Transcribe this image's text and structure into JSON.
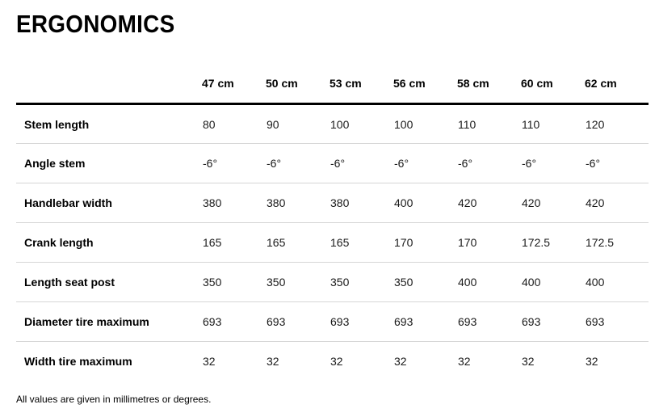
{
  "title": "ERGONOMICS",
  "table": {
    "size_headers": [
      "47 cm",
      "50 cm",
      "53 cm",
      "56 cm",
      "58 cm",
      "60 cm",
      "62 cm"
    ],
    "rows": [
      {
        "label": "Stem length",
        "values": [
          "80",
          "90",
          "100",
          "100",
          "110",
          "110",
          "120"
        ]
      },
      {
        "label": "Angle stem",
        "values": [
          "-6°",
          "-6°",
          "-6°",
          "-6°",
          "-6°",
          "-6°",
          "-6°"
        ]
      },
      {
        "label": "Handlebar width",
        "values": [
          "380",
          "380",
          "380",
          "400",
          "420",
          "420",
          "420"
        ]
      },
      {
        "label": "Crank length",
        "values": [
          "165",
          "165",
          "165",
          "170",
          "170",
          "172.5",
          "172.5"
        ]
      },
      {
        "label": "Length seat post",
        "values": [
          "350",
          "350",
          "350",
          "350",
          "400",
          "400",
          "400"
        ]
      },
      {
        "label": "Diameter tire maximum",
        "values": [
          "693",
          "693",
          "693",
          "693",
          "693",
          "693",
          "693"
        ]
      },
      {
        "label": "Width tire maximum",
        "values": [
          "32",
          "32",
          "32",
          "32",
          "32",
          "32",
          "32"
        ]
      }
    ]
  },
  "footnote": "All values are given in millimetres or degrees.",
  "colors": {
    "text": "#1a1a1a",
    "rule_heavy": "#000000",
    "rule_light": "#d6d6d6"
  }
}
